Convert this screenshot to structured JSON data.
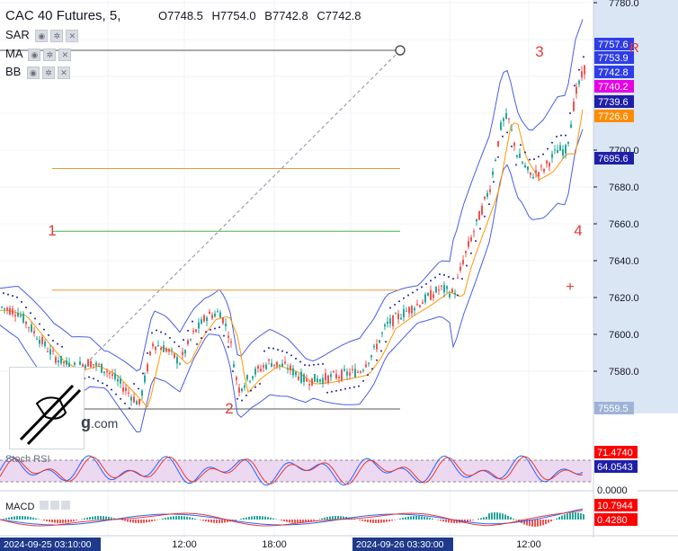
{
  "header": {
    "symbol": "CAC 40 Futures, 5,",
    "ohlc": {
      "open": "O7748.5",
      "high": "H7754.0",
      "bid": "B7742.8",
      "close": "C7742.8"
    },
    "indicators": [
      "SAR",
      "MA",
      "BB"
    ]
  },
  "watermark": {
    "brand": "g",
    "suffix": ".com"
  },
  "annotations": [
    "1",
    "2",
    "3",
    "4"
  ],
  "price_axis": {
    "ticks": [
      "7780.0",
      "7700.0",
      "7680.0",
      "7660.0",
      "7640.0",
      "7620.0",
      "7600.0",
      "7580.0"
    ],
    "badges": [
      {
        "text": "7757.6",
        "bg": "#2e3de6",
        "fg": "#ffffff"
      },
      {
        "text": "7753.9",
        "bg": "#2e3de6",
        "fg": "#ffffff"
      },
      {
        "text": "7742.8",
        "bg": "#2e3de6",
        "fg": "#ffffff"
      },
      {
        "text": "7740.2",
        "bg": "#e600e6",
        "fg": "#ffffff"
      },
      {
        "text": "7739.6",
        "bg": "#1f1fa8",
        "fg": "#ffffff"
      },
      {
        "text": "7726.6",
        "bg": "#ff8c00",
        "fg": "#ffffff"
      },
      {
        "text": "7695.6",
        "bg": "#1f1fa8",
        "fg": "#ffffff"
      },
      {
        "text": "7559.5",
        "bg": "#9fb3d6",
        "fg": "#ffffff"
      }
    ],
    "rsi_badges": [
      {
        "text": "71.4740",
        "bg": "#ff0000",
        "fg": "#ffffff"
      },
      {
        "text": "64.0543",
        "bg": "#1f1fa8",
        "fg": "#ffffff"
      },
      {
        "text": "0.0000",
        "bg": "#ffffff",
        "fg": "#131722"
      }
    ],
    "macd_badges": [
      {
        "text": "10.7944",
        "bg": "#ff0000",
        "fg": "#ffffff"
      },
      {
        "text": "0.4280",
        "bg": "#ff0000",
        "fg": "#ffffff"
      }
    ]
  },
  "time_axis": {
    "labels": [
      "12:00",
      "18:00",
      "12:00"
    ],
    "highlight_labels": [
      "2024-09-25 03:10:00",
      "2024-09-26 03:30:00"
    ]
  },
  "panes": {
    "rsi_label": "Stoch RSI",
    "macd_label": "MACD"
  },
  "colors": {
    "bull": "#26a69a",
    "bear": "#ef5350",
    "band": "#4b5de6",
    "sar": "#1f1fa8",
    "ma": "#ff9800",
    "fib_orange": "#e69a3a",
    "fib_green": "#4caf50",
    "annotation": "#e53935",
    "axis_bg": "#dbe6f5",
    "rsi_fill": "#e1bee7"
  },
  "chart_data": {
    "type": "line",
    "title": "CAC 40 Futures, 5",
    "ylim": [
      7550,
      7785
    ],
    "price_path": [
      [
        0,
        7615
      ],
      [
        20,
        7612
      ],
      [
        40,
        7600
      ],
      [
        60,
        7588
      ],
      [
        80,
        7582
      ],
      [
        100,
        7585
      ],
      [
        120,
        7580
      ],
      [
        140,
        7570
      ],
      [
        155,
        7562
      ],
      [
        170,
        7595
      ],
      [
        185,
        7592
      ],
      [
        200,
        7585
      ],
      [
        215,
        7600
      ],
      [
        230,
        7610
      ],
      [
        245,
        7612
      ],
      [
        255,
        7600
      ],
      [
        265,
        7570
      ],
      [
        280,
        7578
      ],
      [
        300,
        7585
      ],
      [
        320,
        7582
      ],
      [
        340,
        7575
      ],
      [
        360,
        7576
      ],
      [
        380,
        7578
      ],
      [
        400,
        7580
      ],
      [
        415,
        7590
      ],
      [
        430,
        7605
      ],
      [
        450,
        7612
      ],
      [
        470,
        7618
      ],
      [
        490,
        7625
      ],
      [
        505,
        7622
      ],
      [
        515,
        7640
      ],
      [
        530,
        7660
      ],
      [
        545,
        7680
      ],
      [
        558,
        7715
      ],
      [
        565,
        7718
      ],
      [
        575,
        7698
      ],
      [
        590,
        7686
      ],
      [
        605,
        7690
      ],
      [
        620,
        7700
      ],
      [
        630,
        7700
      ],
      [
        640,
        7730
      ],
      [
        650,
        7744
      ]
    ],
    "fib_levels": [
      {
        "label": "1",
        "value": 7656
      },
      {
        "value": 7690
      },
      {
        "value": 7624
      },
      {
        "value": 7559.5
      }
    ],
    "trendline": {
      "start": [
        100,
        7585
      ],
      "end": [
        445,
        7778
      ]
    },
    "markers": {
      "3": [
        600,
        7757
      ],
      "4": [
        643,
        7655
      ],
      "2": [
        255,
        7559.5
      ]
    }
  }
}
